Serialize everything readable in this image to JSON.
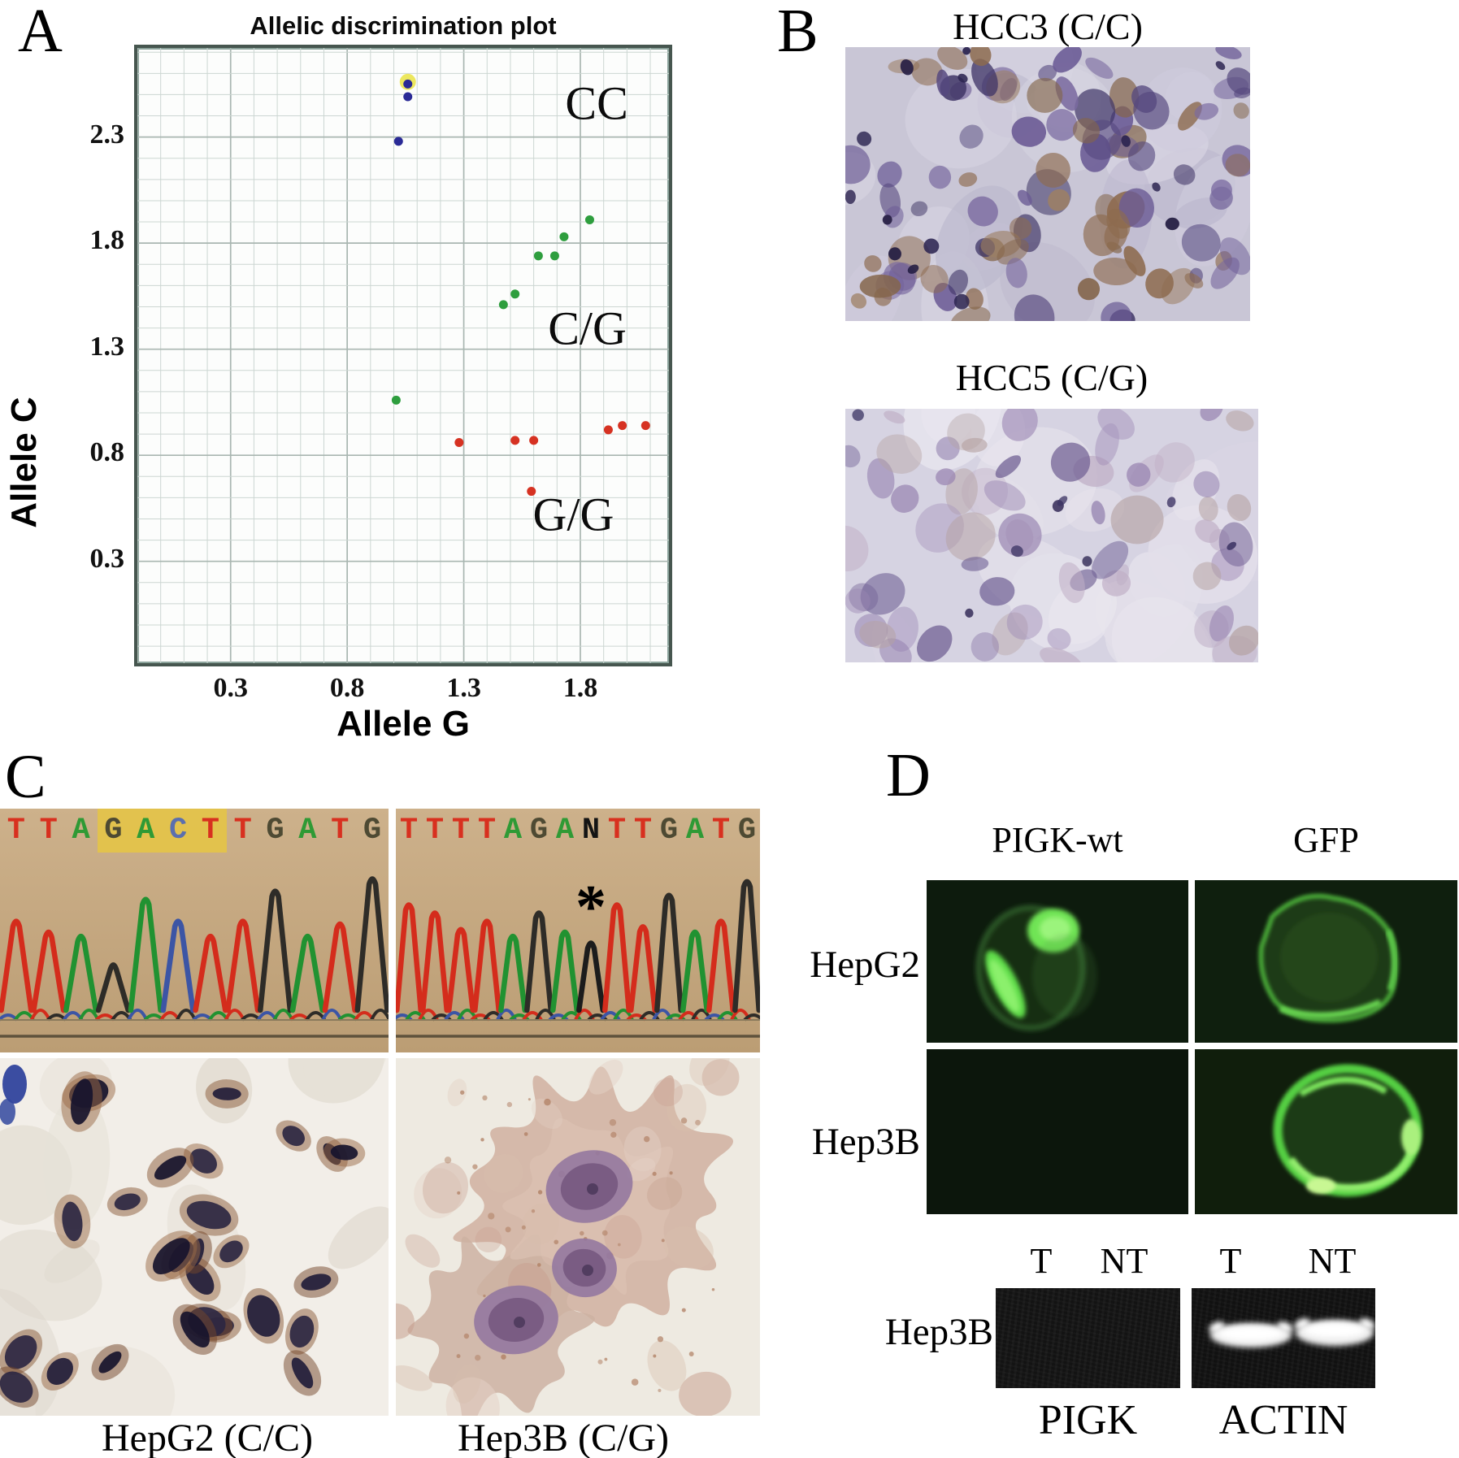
{
  "chart_data": {
    "type": "scatter",
    "title": "Allelic discrimination plot",
    "xlabel": "Allele G",
    "ylabel": "Allele C",
    "xlim": [
      -0.1,
      2.18
    ],
    "ylim": [
      -0.18,
      2.72
    ],
    "x_ticks": [
      0.3,
      0.8,
      1.3,
      1.8
    ],
    "y_ticks": [
      2.3,
      1.8,
      1.3,
      0.8,
      0.3
    ],
    "grid": {
      "minor_step": 0.1,
      "minor_color": "#ccd6d2",
      "major_color": "#a9b6b1"
    },
    "series": [
      {
        "name": "CC",
        "color": "#2a2a96",
        "points": [
          [
            1.06,
            2.55
          ],
          [
            1.06,
            2.49
          ],
          [
            1.02,
            2.28
          ]
        ]
      },
      {
        "name": "C/G",
        "color": "#2e9e3e",
        "points": [
          [
            1.84,
            1.91
          ],
          [
            1.73,
            1.83
          ],
          [
            1.69,
            1.74
          ],
          [
            1.62,
            1.74
          ],
          [
            1.52,
            1.56
          ],
          [
            1.47,
            1.51
          ],
          [
            1.01,
            1.06
          ]
        ]
      },
      {
        "name": "G/G",
        "color": "#d63222",
        "points": [
          [
            1.28,
            0.86
          ],
          [
            1.52,
            0.87
          ],
          [
            1.6,
            0.87
          ],
          [
            1.92,
            0.92
          ],
          [
            1.98,
            0.94
          ],
          [
            2.08,
            0.94
          ],
          [
            1.59,
            0.63
          ]
        ]
      }
    ],
    "highlight_point": {
      "x": 1.06,
      "y": 2.56,
      "color": "#ece75f"
    },
    "annotations": [
      {
        "text": "CC",
        "x": 1.87,
        "y": 2.46
      },
      {
        "text": "C/G",
        "x": 1.83,
        "y": 1.4
      },
      {
        "text": "G/G",
        "x": 1.77,
        "y": 0.52
      }
    ],
    "legend_position": "none"
  },
  "panel_a": {
    "label": "A"
  },
  "panel_b": {
    "label": "B",
    "image1_title": "HCC3 (C/C)",
    "image2_title": "HCC5 (C/G)"
  },
  "panel_c": {
    "label": "C",
    "chrom_left": {
      "sequence": "TTAGACTTGATG",
      "highlight_start": 3,
      "highlight_count": 4
    },
    "chrom_right": {
      "sequence": "TTTTAGANTTGATG",
      "asterisk": "*",
      "asterisk_index": 7
    },
    "caption_left": "HepG2 (C/C)",
    "caption_right": "Hep3B (C/G)"
  },
  "panel_d": {
    "label": "D",
    "col1": "PIGK-wt",
    "col2": "GFP",
    "row1": "HepG2",
    "row2": "Hep3B",
    "gel_row_label": "Hep3B",
    "lanes": [
      "T",
      "NT",
      "T",
      "NT"
    ],
    "gel1_label": "PIGK",
    "gel2_label": "ACTIN"
  },
  "base_colors": {
    "T": "#d8301f",
    "A": "#2f9a35",
    "G": "#4e4a33",
    "C": "#5b6fae",
    "N": "#141414"
  },
  "peak_colors": {
    "T": "#d42c1c",
    "A": "#219231",
    "G": "#2e2c28",
    "C": "#3c55a5",
    "N": "#1c1c1c"
  },
  "colors": {
    "chromatogram_bg": "#c3a57f",
    "sequence_highlight": "#e7c73e",
    "fluorescence_green": "#57d33f",
    "fluorescence_bg": "#0c180c",
    "plot_border": "#46564f",
    "gel_band": "#f4f4f4"
  }
}
